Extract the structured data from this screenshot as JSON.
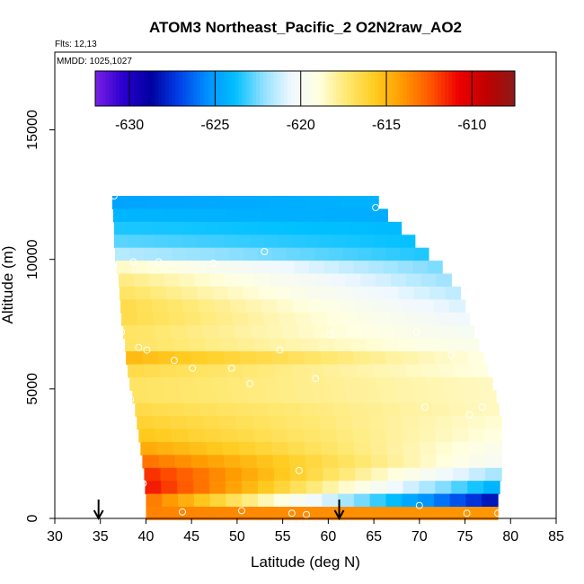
{
  "chart_data": {
    "type": "heatmap",
    "title": "ATOM3 Northeast_Pacific_2 O2N2raw_AO2",
    "flights_label": "Flts: 12,13",
    "dates_label": "MMDD: 1025,1027",
    "xlabel": "Latitude (deg N)",
    "ylabel": "Altitude (m)",
    "xlim": [
      30,
      85
    ],
    "ylim": [
      0,
      18000
    ],
    "xticks": [
      30,
      35,
      40,
      45,
      50,
      55,
      60,
      65,
      70,
      75,
      80,
      85
    ],
    "yticks": [
      0,
      5000,
      10000,
      15000
    ],
    "colorbar": {
      "min": -632,
      "max": -607.5,
      "ticks": [
        -630,
        -625,
        -620,
        -615,
        -610
      ],
      "colors": [
        "#7a1fe6",
        "#2a00d0",
        "#0000a0",
        "#0040e8",
        "#0090ff",
        "#00c0ff",
        "#90e0ff",
        "#f0f8ff",
        "#ffffe0",
        "#ffe870",
        "#ffcc20",
        "#ff9900",
        "#ff5500",
        "#ee0000",
        "#c00000",
        "#8b1a1a"
      ]
    },
    "grid": false,
    "legend": "top",
    "arrows_latitude": [
      34.8,
      61.2
    ],
    "levels": [
      {
        "alt": 12200,
        "lat0": 36.3,
        "lat1": 65.5,
        "v0": -624.8,
        "v1": -624.3
      },
      {
        "alt": 11700,
        "lat0": 36.4,
        "lat1": 66.5,
        "v0": -624.2,
        "v1": -624.5
      },
      {
        "alt": 11200,
        "lat0": 36.5,
        "lat1": 68.0,
        "v0": -623.5,
        "v1": -624.0
      },
      {
        "alt": 10700,
        "lat0": 36.5,
        "lat1": 69.5,
        "v0": -622.8,
        "v1": -623.8
      },
      {
        "alt": 10200,
        "lat0": 36.6,
        "lat1": 71.0,
        "v0": -621.5,
        "v1": -623.5
      },
      {
        "alt": 9700,
        "lat0": 36.8,
        "lat1": 72.5,
        "v0": -618.5,
        "v1": -622.5
      },
      {
        "alt": 9200,
        "lat0": 37.0,
        "lat1": 73.5,
        "v0": -617.5,
        "v1": -622.0
      },
      {
        "alt": 8700,
        "lat0": 37.1,
        "lat1": 74.5,
        "v0": -617.0,
        "v1": -621.5
      },
      {
        "alt": 8200,
        "lat0": 37.2,
        "lat1": 75.0,
        "v0": -616.5,
        "v1": -621.0
      },
      {
        "alt": 7700,
        "lat0": 37.3,
        "lat1": 75.5,
        "v0": -616.5,
        "v1": -620.5
      },
      {
        "alt": 7200,
        "lat0": 37.5,
        "lat1": 76.0,
        "v0": -617.0,
        "v1": -620.0
      },
      {
        "alt": 6700,
        "lat0": 37.7,
        "lat1": 76.5,
        "v0": -617.0,
        "v1": -619.5
      },
      {
        "alt": 6200,
        "lat0": 37.8,
        "lat1": 77.0,
        "v0": -615.0,
        "v1": -619.0
      },
      {
        "alt": 5700,
        "lat0": 38.0,
        "lat1": 77.5,
        "v0": -616.5,
        "v1": -619.0
      },
      {
        "alt": 5200,
        "lat0": 38.2,
        "lat1": 78.0,
        "v0": -617.0,
        "v1": -618.5
      },
      {
        "alt": 4700,
        "lat0": 38.5,
        "lat1": 78.4,
        "v0": -617.0,
        "v1": -618.5
      },
      {
        "alt": 4200,
        "lat0": 38.8,
        "lat1": 78.7,
        "v0": -616.5,
        "v1": -618.5
      },
      {
        "alt": 3700,
        "lat0": 39.0,
        "lat1": 79.0,
        "v0": -616.0,
        "v1": -618.8
      },
      {
        "alt": 3200,
        "lat0": 39.2,
        "lat1": 79.0,
        "v0": -615.5,
        "v1": -619.0
      },
      {
        "alt": 2700,
        "lat0": 39.4,
        "lat1": 79.0,
        "v0": -614.5,
        "v1": -619.5
      },
      {
        "alt": 2200,
        "lat0": 39.6,
        "lat1": 79.0,
        "v0": -613.0,
        "v1": -620.0
      },
      {
        "alt": 1700,
        "lat0": 39.8,
        "lat1": 79.0,
        "v0": -611.5,
        "v1": -622.0
      },
      {
        "alt": 1200,
        "lat0": 39.9,
        "lat1": 78.8,
        "v0": -611.0,
        "v1": -624.5
      },
      {
        "alt": 700,
        "lat0": 40.0,
        "lat1": 78.6,
        "v0": -613.0,
        "v1": -628.5
      },
      {
        "alt": 200,
        "lat0": 40.0,
        "lat1": 78.6,
        "v0": -613.5,
        "v1": -614.0
      }
    ],
    "sample_points": [
      {
        "lat": 36.5,
        "alt": 12450
      },
      {
        "lat": 65.2,
        "alt": 12000
      },
      {
        "lat": 38.6,
        "alt": 9900
      },
      {
        "lat": 41.4,
        "alt": 9900
      },
      {
        "lat": 47.4,
        "alt": 9850
      },
      {
        "lat": 53.0,
        "alt": 10300
      },
      {
        "lat": 72.0,
        "alt": 10300
      },
      {
        "lat": 37.3,
        "alt": 7200
      },
      {
        "lat": 60.2,
        "alt": 7100
      },
      {
        "lat": 69.7,
        "alt": 7200
      },
      {
        "lat": 39.2,
        "alt": 6600
      },
      {
        "lat": 40.1,
        "alt": 6500
      },
      {
        "lat": 54.7,
        "alt": 6500
      },
      {
        "lat": 43.1,
        "alt": 6100
      },
      {
        "lat": 73.5,
        "alt": 6300
      },
      {
        "lat": 45.1,
        "alt": 5800
      },
      {
        "lat": 49.4,
        "alt": 5800
      },
      {
        "lat": 58.6,
        "alt": 5400
      },
      {
        "lat": 51.4,
        "alt": 5200
      },
      {
        "lat": 38.3,
        "alt": 4600
      },
      {
        "lat": 70.6,
        "alt": 4300
      },
      {
        "lat": 76.9,
        "alt": 4300
      },
      {
        "lat": 75.5,
        "alt": 4000
      },
      {
        "lat": 56.8,
        "alt": 1850
      },
      {
        "lat": 39.7,
        "alt": 1350
      },
      {
        "lat": 44.0,
        "alt": 250
      },
      {
        "lat": 50.5,
        "alt": 300
      },
      {
        "lat": 56.0,
        "alt": 200
      },
      {
        "lat": 57.6,
        "alt": 150
      },
      {
        "lat": 70.0,
        "alt": 500
      },
      {
        "lat": 75.2,
        "alt": 200
      },
      {
        "lat": 78.6,
        "alt": 200
      }
    ]
  }
}
